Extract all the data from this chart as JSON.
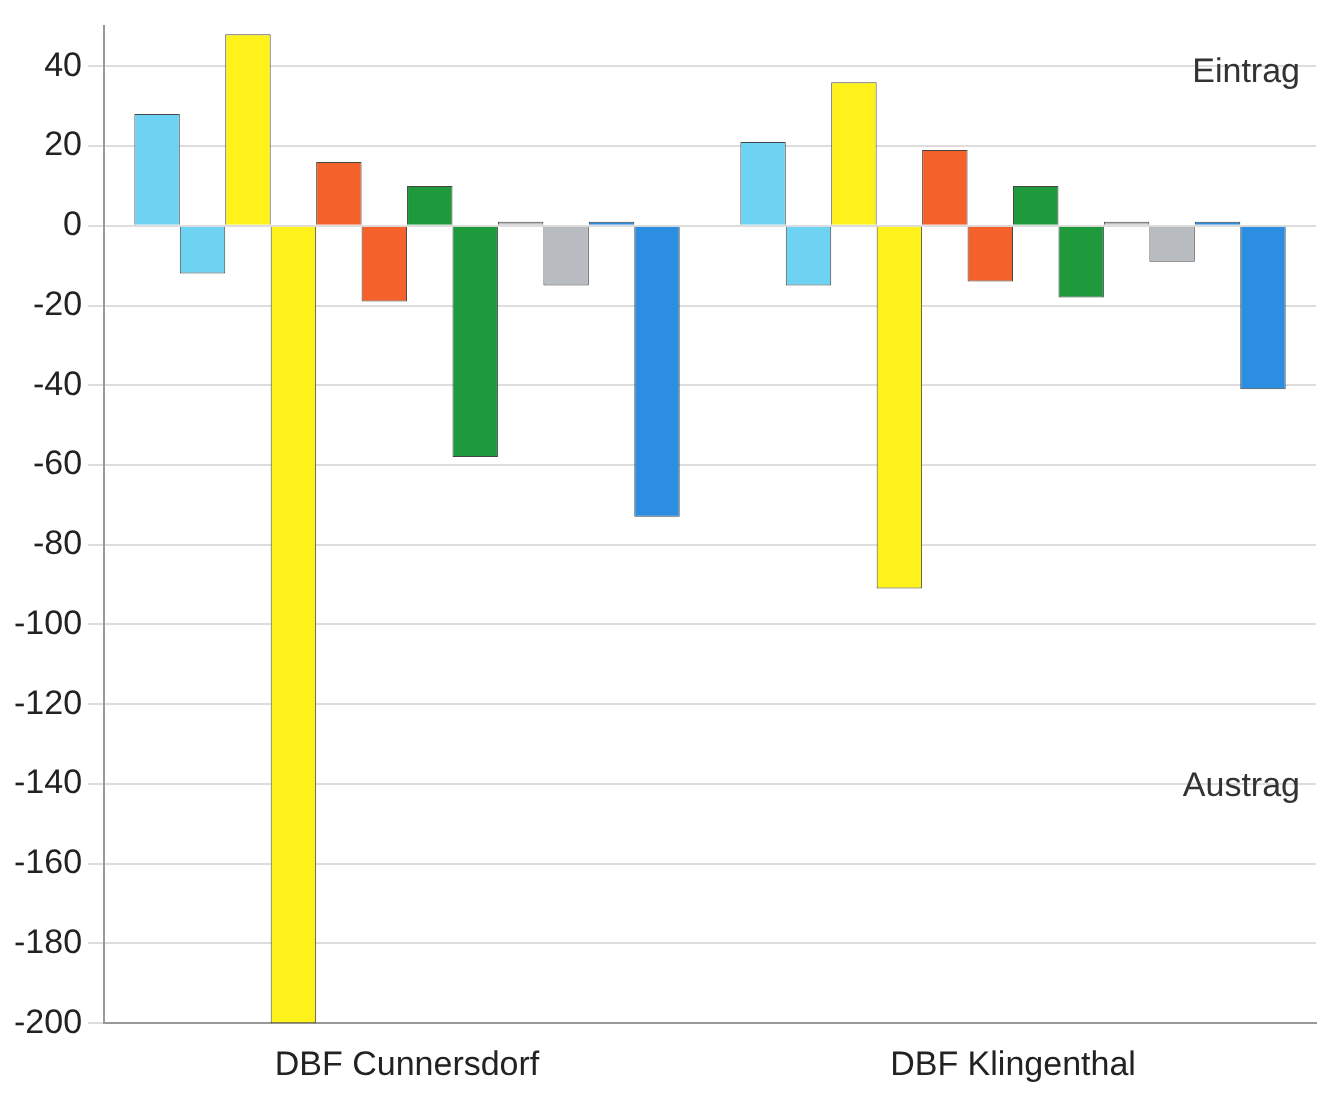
{
  "chart_data": {
    "type": "bar",
    "categories": [
      "DBF Cunnersdorf",
      "DBF Klingenthal"
    ],
    "series": [
      {
        "color": "#6ed3f2",
        "values": [
          28,
          21
        ]
      },
      {
        "color": "#6ed3f2",
        "values": [
          -12,
          -15
        ]
      },
      {
        "color": "#fff21a",
        "values": [
          48,
          36
        ]
      },
      {
        "color": "#fff21a",
        "values": [
          -200,
          -91
        ]
      },
      {
        "color": "#f4612a",
        "values": [
          16,
          19
        ]
      },
      {
        "color": "#f4612a",
        "values": [
          -19,
          -14
        ]
      },
      {
        "color": "#1e9a3c",
        "values": [
          10,
          10
        ]
      },
      {
        "color": "#1e9a3c",
        "values": [
          -58,
          -18
        ]
      },
      {
        "color": "#b8bcc0",
        "values": [
          1,
          1
        ]
      },
      {
        "color": "#b8bcc0",
        "values": [
          -15,
          -9
        ]
      },
      {
        "color": "#2b8ee0",
        "values": [
          1,
          1
        ]
      },
      {
        "color": "#2b8ee0",
        "values": [
          -73,
          -41
        ]
      }
    ],
    "ylim": [
      -200,
      50
    ],
    "yticks": [
      -200,
      -180,
      -160,
      -140,
      -120,
      -100,
      -80,
      -60,
      -40,
      -20,
      0,
      20,
      40
    ],
    "grid": "y",
    "legend": false,
    "annotations": [
      "Eintrag",
      "Austrag"
    ]
  }
}
